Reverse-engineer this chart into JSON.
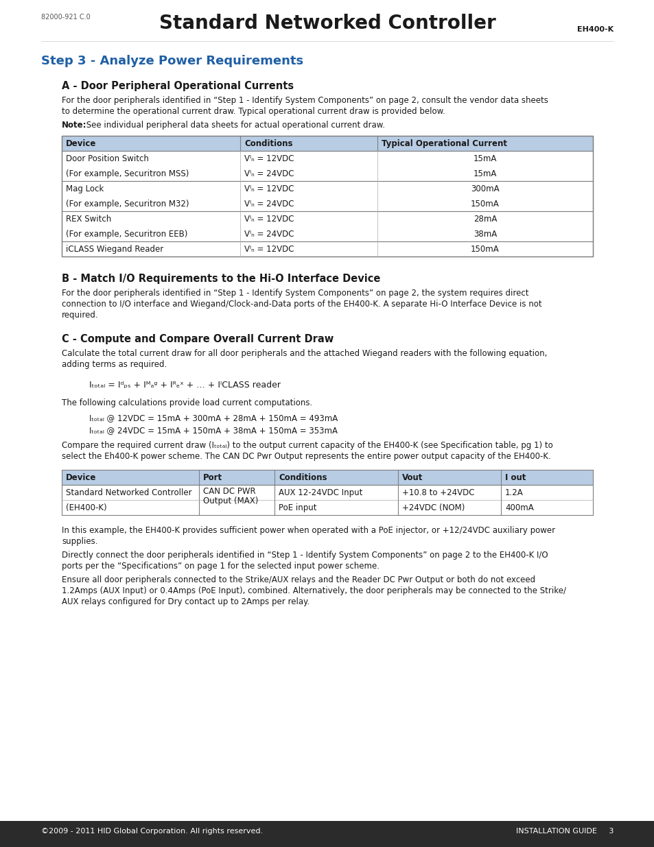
{
  "page_title": "Standard Networked Controller",
  "doc_number": "82000-921 C.0",
  "model": "EH400-K",
  "section_title": "Step 3 - Analyze Power Requirements",
  "section_title_color": "#1F5FA6",
  "subsection_a": "A - Door Peripheral Operational Currents",
  "subsection_a_color": "#333333",
  "para_a1": "For the door peripherals identified in “Step 1 - Identify System Components” on page 2, consult the vendor data sheets\nto determine the operational current draw. Typical operational current draw is provided below.",
  "note_a": "Note: See individual peripheral data sheets for actual operational current draw.",
  "table_a_header": [
    "Device",
    "Conditions",
    "Typical Operational Current"
  ],
  "table_a_rows": [
    [
      "Door Position Switch",
      "Vᴵₙ = 12VDC",
      "15mA"
    ],
    [
      "(For example, Securitron MSS)",
      "Vᴵₙ = 24VDC",
      "15mA"
    ],
    [
      "Mag Lock",
      "Vᴵₙ = 12VDC",
      "300mA"
    ],
    [
      "(For example, Securitron M32)",
      "Vᴵₙ = 24VDC",
      "150mA"
    ],
    [
      "REX Switch",
      "Vᴵₙ = 12VDC",
      "28mA"
    ],
    [
      "(For example, Securitron EEB)",
      "Vᴵₙ = 24VDC",
      "38mA"
    ],
    [
      "iCLASS Wiegand Reader",
      "Vᴵₙ = 12VDC",
      "150mA"
    ]
  ],
  "table_a_header_bg": "#B8CCE4",
  "table_a_border": "#7F7F7F",
  "subsection_b": "B - Match I/O Requirements to the Hi-O Interface Device",
  "para_b1": "For the door peripherals identified in “Step 1 - Identify System Components” on page 2, the system requires direct\nconnection to I/O interface and Wiegand/Clock-and-Data ports of the EH400-K. A separate Hi-O Interface Device is not\nrequired.",
  "subsection_c": "C - Compute and Compare Overall Current Draw",
  "para_c1": "Calculate the total current draw for all door peripherals and the attached Wiegand readers with the following equation,\nadding terms as required.",
  "equation_main": "Iₜₒₜₐₗ = Iᵈₚₛ + Iᴹₐᵍ + Iᴿₑˣ + … + IᴵCLASS reader",
  "para_c2": "The following calculations provide load current computations.",
  "calc1": "Iₜₒₜₐₗ @ 12VDC = 15mA + 300mA + 28mA + 150mA = 493mA",
  "calc2": "Iₜₒₜₐₗ @ 24VDC = 15mA + 150mA + 38mA + 150mA = 353mA",
  "para_c3": "Compare the required current draw (Iₜₒₜₐₗ) to the output current capacity of the EH400-K (see Specification table, pg 1) to\nselect the Eh400-K power scheme. The CAN DC Pwr Output represents the entire power output capacity of the EH400-K.",
  "table_c_header": [
    "Device",
    "Port",
    "Conditions",
    "Vout",
    "I out"
  ],
  "table_c_rows": [
    [
      "Standard Networked Controller",
      "CAN DC PWR\nOutput (MAX)",
      "AUX 12-24VDC Input",
      "+10.8 to +24VDC",
      "1.2A"
    ],
    [
      "(EH400-K)",
      "",
      "PoE input",
      "+24VDC (NOM)",
      "400mA"
    ]
  ],
  "table_c_header_bg": "#B8CCE4",
  "para_c4": "In this example, the EH400-K provides sufficient power when operated with a PoE injector, or +12/24VDC auxiliary power\nsupplies.",
  "para_c5": "Directly connect the door peripherals identified in “Step 1 - Identify System Components” on page 2 to the EH400-K I/O\nports per the “Specifications” on page 1 for the selected input power scheme.",
  "para_c6": "Ensure all door peripherals connected to the Strike/AUX relays and the Reader DC Pwr Output or both do not exceed\n1.2Amps (AUX Input) or 0.4Amps (PoE Input), combined. Alternatively, the door peripherals may be connected to the Strike/\nAUX relays configured for Dry contact up to 2Amps per relay.",
  "footer_bg": "#2B2B2B",
  "footer_text_color": "#FFFFFF",
  "footer_left": "©2009 - 2011 HID Global Corporation. All rights reserved.",
  "footer_right": "INSTALLATION GUIDE     3",
  "background_color": "#FFFFFF"
}
